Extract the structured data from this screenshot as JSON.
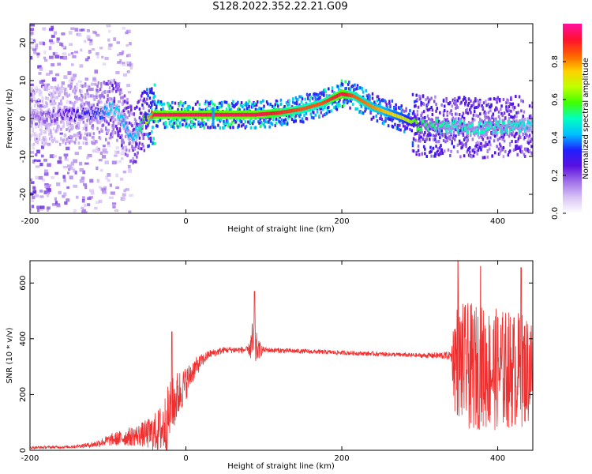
{
  "figure": {
    "title": "S128.2022.352.22.21.G09"
  },
  "chart_data": [
    {
      "type": "heatmap",
      "xlabel": "Height of straight line (km)",
      "ylabel": "Frequency (Hz)",
      "xlim": [
        -200,
        445
      ],
      "ylim": [
        -25,
        25
      ],
      "x_ticks": [
        -200,
        0,
        200,
        400
      ],
      "y_ticks": [
        -20,
        -10,
        0,
        10,
        20
      ],
      "colorbar": {
        "label": "Normalized spectral amplitude",
        "range": [
          0,
          1
        ],
        "ticks": [
          0.0,
          0.2,
          0.4,
          0.6,
          0.8
        ],
        "tick_labels": [
          "0.0",
          "0.2",
          "0.4",
          "0.6",
          "0.8"
        ],
        "colormap": [
          "#ffffff",
          "#d9c4f5",
          "#a070e8",
          "#5a10e0",
          "#2020ff",
          "#00c0ff",
          "#00ffc0",
          "#40ff00",
          "#c0ff00",
          "#ffd000",
          "#ff6000",
          "#ff1030",
          "#ff10a0"
        ]
      },
      "ridge": {
        "x": [
          -200,
          -150,
          -110,
          -95,
          -85,
          -75,
          -68,
          -55,
          -40,
          0,
          40,
          90,
          120,
          150,
          175,
          200,
          215,
          240,
          260,
          280,
          300,
          340,
          380,
          420,
          445
        ],
        "freq": [
          0,
          1,
          1.5,
          3,
          1,
          -3,
          -5,
          -1,
          1,
          1,
          1,
          1,
          1.5,
          2.5,
          4,
          6.5,
          6,
          3,
          1.5,
          0,
          -2,
          -2,
          -2.5,
          -2,
          -2
        ],
        "amplitude": [
          0.15,
          0.25,
          0.35,
          0.45,
          0.45,
          0.4,
          0.4,
          0.55,
          0.95,
          0.95,
          0.95,
          0.95,
          0.9,
          0.85,
          0.85,
          0.95,
          0.85,
          0.8,
          0.75,
          0.7,
          0.55,
          0.5,
          0.5,
          0.5,
          0.45
        ]
      },
      "spikes": [
        {
          "x": 35,
          "low": -2,
          "high": 3
        }
      ],
      "scatter_region": {
        "x_from": -200,
        "x_to": -70,
        "freq_range": [
          -25,
          25
        ]
      }
    },
    {
      "type": "line",
      "xlabel": "Height of straight line (km)",
      "ylabel": "SNR (10 * v/v)",
      "xlim": [
        -200,
        445
      ],
      "ylim": [
        0,
        680
      ],
      "x_ticks": [
        -200,
        0,
        200,
        400
      ],
      "y_ticks": [
        0,
        200,
        400,
        600
      ],
      "color": "#ef3030",
      "envelope": {
        "x": [
          -200,
          -150,
          -120,
          -100,
          -80,
          -60,
          -45,
          -35,
          -30,
          -25,
          -20,
          -10,
          0,
          10,
          20,
          30,
          50,
          80,
          85,
          88,
          92,
          100,
          150,
          200,
          250,
          300,
          340,
          345,
          360,
          400,
          445
        ],
        "mean": [
          10,
          12,
          20,
          35,
          45,
          55,
          60,
          70,
          80,
          100,
          140,
          200,
          240,
          290,
          320,
          345,
          360,
          360,
          380,
          380,
          360,
          360,
          355,
          350,
          345,
          340,
          340,
          330,
          300,
          290,
          290
        ],
        "spread": [
          5,
          5,
          10,
          20,
          30,
          40,
          60,
          80,
          100,
          120,
          110,
          90,
          60,
          40,
          25,
          15,
          12,
          12,
          80,
          100,
          40,
          10,
          8,
          8,
          8,
          8,
          15,
          200,
          230,
          220,
          200
        ]
      },
      "peaks": [
        {
          "x": -18,
          "y": 425
        },
        {
          "x": 88,
          "y": 570
        },
        {
          "x": 349,
          "y": 680
        },
        {
          "x": 378,
          "y": 660
        },
        {
          "x": 430,
          "y": 655
        }
      ]
    }
  ]
}
